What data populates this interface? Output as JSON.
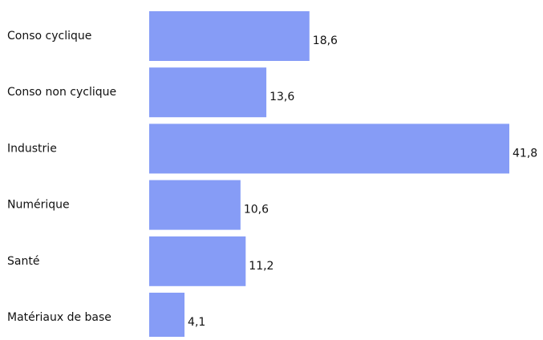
{
  "chart_data": {
    "type": "bar",
    "orientation": "horizontal",
    "categories": [
      "Conso cyclique",
      "Conso non cyclique",
      "Industrie",
      "Numérique",
      "Santé",
      "Matériaux de base"
    ],
    "values": [
      18.6,
      13.6,
      41.8,
      10.6,
      11.2,
      4.1
    ],
    "value_labels": [
      "18,6",
      "13,6",
      "41,8",
      "10,6",
      "11,2",
      "4,1"
    ],
    "xlim": [
      0,
      41.8
    ],
    "title": "",
    "xlabel": "",
    "ylabel": "",
    "grid": false,
    "legend": "none",
    "colors": {
      "bar": "#869cf6",
      "text": "#111111",
      "background": "#ffffff"
    }
  }
}
